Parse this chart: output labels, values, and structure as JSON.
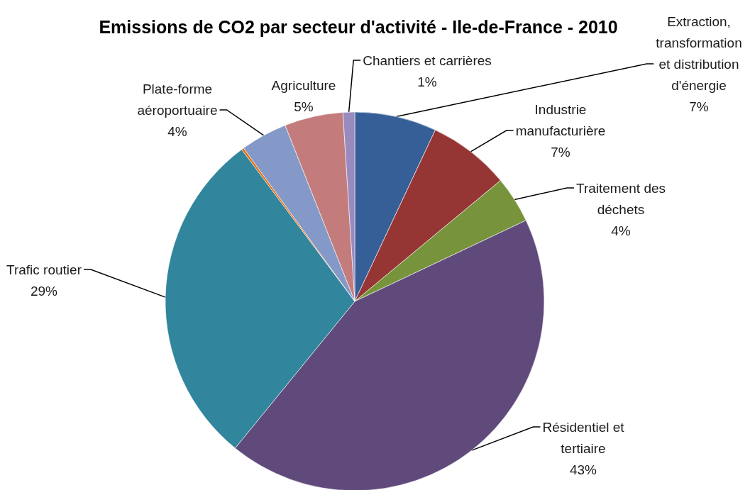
{
  "chart_data": {
    "type": "pie",
    "title": "Emissions de CO2 par secteur d'activité - Ile-de-France - 2010",
    "categories": [
      "Extraction, transformation et distribution d'énergie",
      "Industrie manufacturière",
      "Traitement des déchets",
      "Résidentiel et tertiaire",
      "Trafic routier",
      null,
      "Plate-forme aéroportuaire",
      "Agriculture",
      "Chantiers et carrières"
    ],
    "values": [
      7,
      7,
      4,
      43,
      29,
      0.2,
      4,
      5,
      1
    ],
    "value_labels": [
      "7%",
      "7%",
      "4%",
      "43%",
      "29%",
      null,
      "4%",
      "5%",
      "1%"
    ],
    "colors": [
      "#365f97",
      "#963634",
      "#77933c",
      "#604a7b",
      "#31859c",
      "#e46c0a",
      "#8499c8",
      "#c47b7b",
      "#9a8bbf"
    ]
  }
}
